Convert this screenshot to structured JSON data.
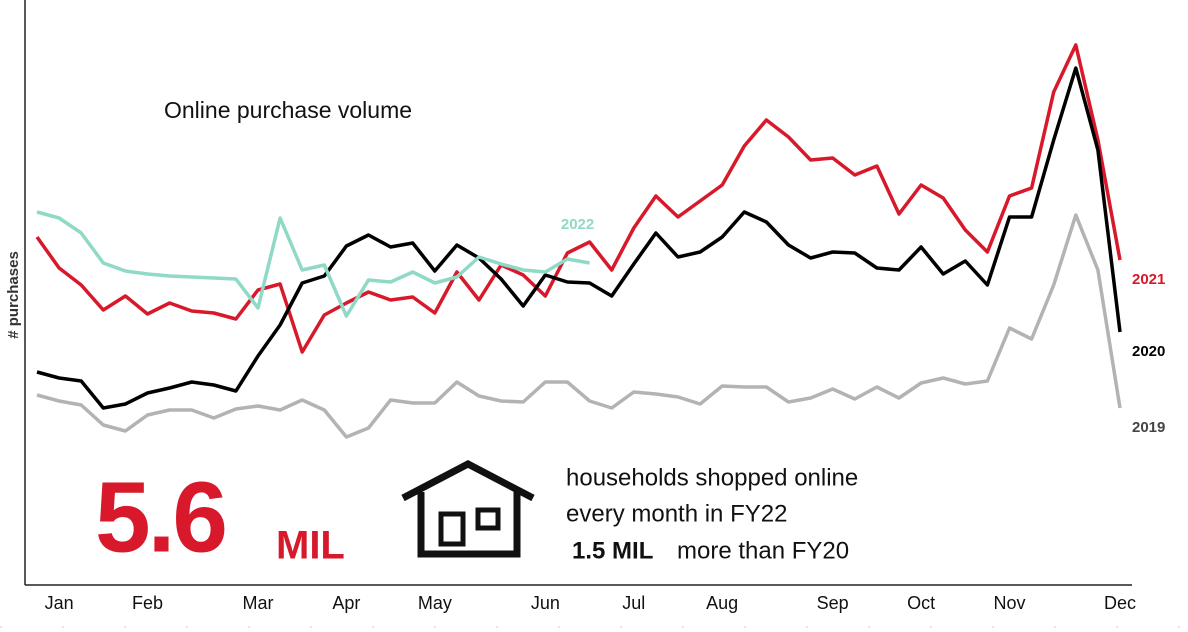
{
  "chart_data": {
    "type": "line",
    "title": "Online purchase volume",
    "y_label": "# purchases",
    "categories": [
      null,
      "Jan",
      null,
      null,
      null,
      "Feb",
      null,
      null,
      null,
      null,
      "Mar",
      null,
      null,
      null,
      "Apr",
      null,
      null,
      null,
      "May",
      null,
      null,
      null,
      null,
      "Jun",
      null,
      null,
      null,
      "Jul",
      null,
      null,
      null,
      "Aug",
      null,
      null,
      null,
      null,
      "Sep",
      null,
      null,
      null,
      "Oct",
      null,
      null,
      null,
      "Nov",
      null,
      null,
      null,
      null,
      "Dec"
    ],
    "ylim": [
      0,
      560
    ],
    "series": [
      {
        "name": "2021",
        "color": "#d7192b",
        "values": [
          348,
          317,
          300,
          275,
          289,
          271,
          282,
          274,
          272,
          266,
          295,
          301,
          233,
          270,
          282,
          293,
          285,
          288,
          272,
          313,
          285,
          320,
          310,
          289,
          332,
          343,
          315,
          357,
          389,
          368,
          384,
          400,
          439,
          465,
          448,
          425,
          427,
          410,
          419,
          371,
          400,
          387,
          355,
          333,
          389,
          397,
          493,
          540,
          445,
          325
        ]
      },
      {
        "name": "2020",
        "color": "#000000",
        "values": [
          213,
          207,
          204,
          177,
          181,
          192,
          197,
          203,
          200,
          194,
          229,
          260,
          302,
          309,
          339,
          350,
          338,
          342,
          314,
          340,
          327,
          306,
          279,
          310,
          303,
          302,
          289,
          321,
          352,
          328,
          333,
          348,
          373,
          363,
          340,
          327,
          333,
          332,
          317,
          315,
          338,
          311,
          324,
          300,
          368,
          368,
          445,
          517,
          435,
          253
        ]
      },
      {
        "name": "2019",
        "color": "#b3b3b3",
        "values": [
          190,
          184,
          180,
          160,
          154,
          170,
          175,
          175,
          167,
          176,
          179,
          175,
          185,
          175,
          148,
          157,
          185,
          182,
          182,
          203,
          189,
          184,
          183,
          203,
          203,
          184,
          177,
          193,
          191,
          188,
          181,
          199,
          198,
          198,
          183,
          187,
          196,
          186,
          198,
          187,
          202,
          207,
          201,
          204,
          257,
          246,
          300,
          370,
          315,
          177
        ]
      },
      {
        "name": "2022",
        "color": "#8fd9c6",
        "values": [
          373,
          367,
          352,
          322,
          314,
          311,
          309,
          308,
          307,
          306,
          277,
          367,
          315,
          320,
          269,
          305,
          303,
          313,
          302,
          308,
          328,
          321,
          315,
          313,
          326,
          322,
          null,
          null,
          null,
          null,
          null,
          null,
          null,
          null,
          null,
          null,
          null,
          null,
          null,
          null,
          null,
          null,
          null,
          null,
          null,
          null,
          null,
          null,
          null,
          null
        ]
      }
    ],
    "stat_value": "5.6",
    "stat_unit": "MIL",
    "description": [
      "households shopped online",
      "every month in FY22"
    ],
    "comparison_value": "1.5 MIL",
    "comparison_text": "more than FY20"
  }
}
